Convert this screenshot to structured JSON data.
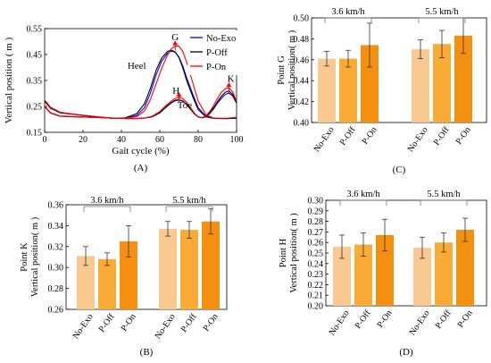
{
  "chart_data": [
    {
      "id": "A",
      "type": "line",
      "panel_label": "(A)",
      "xlabel": "Gait cycle (%)",
      "ylabel": "Vertical position ( m )",
      "xlim": [
        0,
        100
      ],
      "ylim": [
        0.15,
        0.55
      ],
      "xticks": [
        "0",
        "20",
        "40",
        "60",
        "80",
        "100"
      ],
      "yticks": [
        "0.15",
        "0.25",
        "0.35",
        "0.45",
        "0.55"
      ],
      "legend_position": "top-right",
      "series": [
        {
          "name": "No-Exo",
          "color": "#0000ff",
          "heel": {
            "x": [
              0,
              3,
              8,
              15,
              25,
              35,
              42,
              48,
              52,
              55,
              58,
              61,
              64,
              66,
              68,
              70,
              72,
              74,
              77,
              80,
              84,
              88,
              92,
              96,
              100
            ],
            "y": [
              0.27,
              0.243,
              0.226,
              0.22,
              0.212,
              0.204,
              0.205,
              0.215,
              0.245,
              0.3,
              0.37,
              0.425,
              0.455,
              0.463,
              0.459,
              0.44,
              0.405,
              0.36,
              0.3,
              0.245,
              0.212,
              0.204,
              0.203,
              0.203,
              0.205
            ]
          },
          "toe": {
            "x": [
              0,
              3,
              8,
              15,
              25,
              35,
              42,
              48,
              52,
              56,
              60,
              63,
              66,
              68,
              70,
              72,
              74,
              76,
              78,
              80,
              82,
              84,
              86,
              88,
              90,
              92,
              94,
              96,
              98,
              100
            ],
            "y": [
              0.25,
              0.225,
              0.212,
              0.21,
              0.208,
              0.205,
              0.203,
              0.203,
              0.205,
              0.21,
              0.225,
              0.245,
              0.263,
              0.272,
              0.274,
              0.27,
              0.258,
              0.24,
              0.222,
              0.21,
              0.206,
              0.21,
              0.222,
              0.24,
              0.262,
              0.28,
              0.296,
              0.302,
              0.29,
              0.262
            ]
          }
        },
        {
          "name": "P-Off",
          "color": "#000000",
          "heel": {
            "x": [
              0,
              3,
              8,
              15,
              25,
              35,
              42,
              48,
              52,
              55,
              58,
              61,
              64,
              66,
              68,
              70,
              72,
              74,
              77,
              80,
              84,
              88,
              92,
              96,
              100
            ],
            "y": [
              0.27,
              0.244,
              0.226,
              0.219,
              0.211,
              0.204,
              0.206,
              0.222,
              0.26,
              0.318,
              0.388,
              0.437,
              0.462,
              0.467,
              0.46,
              0.438,
              0.398,
              0.35,
              0.29,
              0.238,
              0.21,
              0.204,
              0.203,
              0.203,
              0.205
            ]
          },
          "toe": {
            "x": [
              0,
              3,
              8,
              15,
              25,
              35,
              42,
              48,
              52,
              56,
              60,
              63,
              66,
              68,
              70,
              72,
              74,
              76,
              78,
              80,
              82,
              84,
              86,
              88,
              90,
              92,
              94,
              96,
              98,
              100
            ],
            "y": [
              0.25,
              0.225,
              0.212,
              0.21,
              0.208,
              0.205,
              0.203,
              0.203,
              0.205,
              0.21,
              0.226,
              0.247,
              0.265,
              0.274,
              0.276,
              0.271,
              0.258,
              0.239,
              0.221,
              0.209,
              0.206,
              0.211,
              0.225,
              0.245,
              0.268,
              0.288,
              0.304,
              0.31,
              0.296,
              0.266
            ]
          }
        },
        {
          "name": "P-On",
          "color": "#ff0000",
          "heel": {
            "x": [
              0,
              3,
              8,
              15,
              25,
              35,
              42,
              48,
              52,
              55,
              58,
              61,
              64,
              66,
              68,
              70,
              72,
              74,
              77,
              80,
              84,
              88,
              92,
              96,
              100
            ],
            "y": [
              0.275,
              0.247,
              0.228,
              0.22,
              0.212,
              0.205,
              0.204,
              0.21,
              0.232,
              0.275,
              0.335,
              0.398,
              0.448,
              0.472,
              0.483,
              0.482,
              0.462,
              0.42,
              0.345,
              0.27,
              0.218,
              0.205,
              0.204,
              0.205,
              0.208
            ]
          },
          "toe": {
            "x": [
              0,
              3,
              8,
              15,
              25,
              35,
              42,
              48,
              52,
              56,
              60,
              63,
              66,
              68,
              70,
              72,
              74,
              76,
              78,
              80,
              82,
              84,
              86,
              88,
              90,
              92,
              94,
              96,
              98,
              100
            ],
            "y": [
              0.252,
              0.226,
              0.213,
              0.211,
              0.208,
              0.205,
              0.203,
              0.203,
              0.205,
              0.212,
              0.23,
              0.252,
              0.271,
              0.281,
              0.284,
              0.28,
              0.266,
              0.245,
              0.224,
              0.21,
              0.207,
              0.213,
              0.23,
              0.253,
              0.28,
              0.303,
              0.318,
              0.322,
              0.305,
              0.27
            ]
          }
        }
      ],
      "annotations": [
        {
          "text": "G",
          "x": 68,
          "y": 0.505
        },
        {
          "text": "Heel",
          "x": 48,
          "y": 0.395
        },
        {
          "text": "H",
          "x": 68.5,
          "y": 0.298
        },
        {
          "text": "Toe",
          "x": 73,
          "y": 0.243
        },
        {
          "text": "K",
          "x": 97,
          "y": 0.345
        }
      ],
      "markers": [
        {
          "x": 68,
          "y": 0.483
        },
        {
          "x": 70,
          "y": 0.284
        },
        {
          "x": 96,
          "y": 0.322
        }
      ]
    },
    {
      "id": "C",
      "type": "bar",
      "panel_label": "(C)",
      "ylabel_lines": [
        "Point G",
        "Vertical position( m )"
      ],
      "ylim": [
        0.4,
        0.5
      ],
      "yticks": [
        "0.40",
        "0.42",
        "0.44",
        "0.46",
        "0.48",
        "0.50"
      ],
      "groups": [
        "3.6 km/h",
        "5.5 km/h"
      ],
      "categories": [
        "No-Exo",
        "P-Off",
        "P-On",
        "No-Exo",
        "P-Off",
        "P-On"
      ],
      "values": [
        0.461,
        0.461,
        0.474,
        0.47,
        0.475,
        0.483
      ],
      "errors": [
        0.007,
        0.008,
        0.021,
        0.009,
        0.013,
        0.017
      ],
      "colors": [
        "#f9c98f",
        "#f9ab35",
        "#f58f10",
        "#f9c98f",
        "#f9ab35",
        "#f58f10"
      ]
    },
    {
      "id": "B",
      "type": "bar",
      "panel_label": "(B)",
      "ylabel_lines": [
        "Point K",
        "Vertical position( m )"
      ],
      "ylim": [
        0.26,
        0.36
      ],
      "yticks": [
        "0.26",
        "0.28",
        "0.30",
        "0.32",
        "0.34",
        "0.36"
      ],
      "groups": [
        "3.6 km/h",
        "5.5 km/h"
      ],
      "categories": [
        "No-Exo",
        "P-Off",
        "P-On",
        "No-Exo",
        "P-Off",
        "P-On"
      ],
      "values": [
        0.311,
        0.308,
        0.325,
        0.337,
        0.336,
        0.344
      ],
      "errors": [
        0.009,
        0.006,
        0.015,
        0.007,
        0.008,
        0.012
      ],
      "colors": [
        "#f9c98f",
        "#f9ab35",
        "#f58f10",
        "#f9c98f",
        "#f9ab35",
        "#f58f10"
      ]
    },
    {
      "id": "D",
      "type": "bar",
      "panel_label": "(D)",
      "ylabel_lines": [
        "Point H",
        "Vertical position( m )"
      ],
      "ylim": [
        0.2,
        0.3
      ],
      "yticks": [
        "0.20",
        "0.21",
        "0.22",
        "0.23",
        "0.24",
        "0.25",
        "0.26",
        "0.27",
        "0.28",
        "0.29",
        "0.30"
      ],
      "groups": [
        "3.6 km/h",
        "5.5 km/h"
      ],
      "categories": [
        "No-Exo",
        "P-Off",
        "P-On",
        "No-Exo",
        "P-Off",
        "P-On"
      ],
      "values": [
        0.256,
        0.258,
        0.267,
        0.255,
        0.26,
        0.272
      ],
      "errors": [
        0.011,
        0.011,
        0.015,
        0.01,
        0.009,
        0.011
      ],
      "colors": [
        "#f9c98f",
        "#f9ab35",
        "#f58f10",
        "#f9c98f",
        "#f9ab35",
        "#f58f10"
      ]
    }
  ]
}
